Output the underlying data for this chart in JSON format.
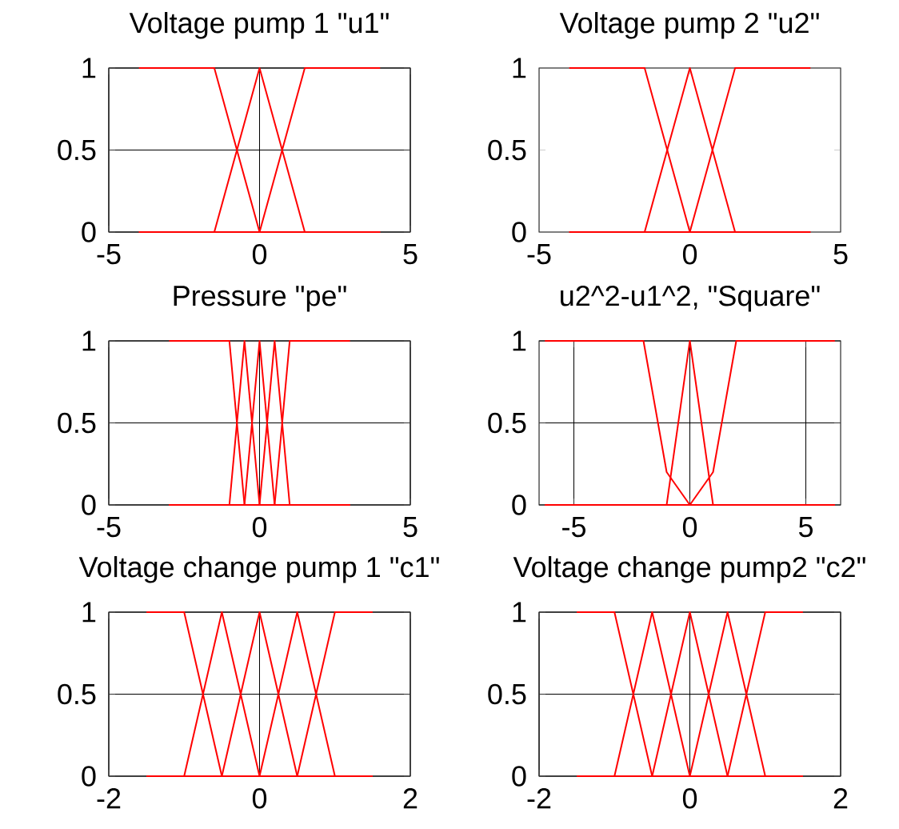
{
  "chart_data": [
    {
      "type": "line",
      "title": "Voltage pump 1 \"u1\"",
      "xlim": [
        -5,
        5
      ],
      "ylim": [
        0,
        1
      ],
      "xticks": [
        -5,
        0,
        5
      ],
      "yticks": [
        0,
        0.5,
        1
      ],
      "grid": true,
      "series": [
        {
          "color": "#ff0000",
          "x": [
            -4,
            -1.5,
            0,
            4
          ],
          "values": [
            1,
            1,
            0,
            0
          ]
        },
        {
          "color": "#ff0000",
          "x": [
            -4,
            -1.5,
            0,
            1.5,
            4
          ],
          "values": [
            0,
            0,
            1,
            0,
            0
          ]
        },
        {
          "color": "#ff0000",
          "x": [
            -4,
            0,
            1.5,
            4
          ],
          "values": [
            0,
            0,
            1,
            1
          ]
        }
      ]
    },
    {
      "type": "line",
      "title": "Voltage pump 2 \"u2\"",
      "xlim": [
        -5,
        5
      ],
      "ylim": [
        0,
        1
      ],
      "xticks": [
        -5,
        0,
        5
      ],
      "yticks": [
        0,
        0.5,
        1
      ],
      "grid": false,
      "series": [
        {
          "color": "#ff0000",
          "x": [
            -4,
            -1.5,
            0,
            4
          ],
          "values": [
            1,
            1,
            0,
            0
          ]
        },
        {
          "color": "#ff0000",
          "x": [
            -4,
            -1.5,
            0,
            1.5,
            4
          ],
          "values": [
            0,
            0,
            1,
            0,
            0
          ]
        },
        {
          "color": "#ff0000",
          "x": [
            -4,
            0,
            1.5,
            4
          ],
          "values": [
            0,
            0,
            1,
            1
          ]
        }
      ]
    },
    {
      "type": "line",
      "title": "Pressure \"pe\"",
      "xlim": [
        -5,
        5
      ],
      "ylim": [
        0,
        1
      ],
      "xticks": [
        -5,
        0,
        5
      ],
      "yticks": [
        0,
        0.5,
        1
      ],
      "grid": true,
      "series": [
        {
          "color": "#ff0000",
          "x": [
            -3,
            -1,
            -0.5,
            3
          ],
          "values": [
            1,
            1,
            0,
            0
          ]
        },
        {
          "color": "#ff0000",
          "x": [
            -3,
            -1,
            -0.5,
            0,
            3
          ],
          "values": [
            0,
            0,
            1,
            0,
            0
          ]
        },
        {
          "color": "#ff0000",
          "x": [
            -3,
            -0.5,
            0,
            0.5,
            3
          ],
          "values": [
            0,
            0,
            1,
            0,
            0
          ]
        },
        {
          "color": "#ff0000",
          "x": [
            -3,
            0,
            0.5,
            1,
            3
          ],
          "values": [
            0,
            0,
            1,
            0,
            0
          ]
        },
        {
          "color": "#ff0000",
          "x": [
            -3,
            0.5,
            1,
            3
          ],
          "values": [
            0,
            0,
            1,
            1
          ]
        }
      ]
    },
    {
      "type": "line",
      "title": "u2^2-u1^2, \"Square\"",
      "xlim": [
        -6.5,
        6.5
      ],
      "ylim": [
        0,
        1
      ],
      "xticks": [
        -5,
        0,
        5
      ],
      "yticks": [
        0,
        0.5,
        1
      ],
      "grid": true,
      "series": [
        {
          "color": "#ff0000",
          "x": [
            -6.25,
            -2,
            -1,
            0,
            6.25
          ],
          "values": [
            1,
            1,
            0.2,
            0,
            0
          ]
        },
        {
          "color": "#ff0000",
          "x": [
            -6.25,
            -1,
            0,
            1,
            6.25
          ],
          "values": [
            0,
            0,
            1,
            0,
            0
          ]
        },
        {
          "color": "#ff0000",
          "x": [
            -6.25,
            0,
            1,
            2,
            6.25
          ],
          "values": [
            0,
            0,
            0.2,
            1,
            1
          ]
        }
      ]
    },
    {
      "type": "line",
      "title": "Voltage change pump 1 \"c1\"",
      "xlim": [
        -2,
        2
      ],
      "ylim": [
        0,
        1
      ],
      "xticks": [
        -2,
        0,
        2
      ],
      "yticks": [
        0,
        0.5,
        1
      ],
      "grid": true,
      "series": [
        {
          "color": "#ff0000",
          "x": [
            -1.5,
            -1,
            -0.5,
            1.5
          ],
          "values": [
            1,
            1,
            0,
            0
          ]
        },
        {
          "color": "#ff0000",
          "x": [
            -1.5,
            -1,
            -0.5,
            0,
            1.5
          ],
          "values": [
            0,
            0,
            1,
            0,
            0
          ]
        },
        {
          "color": "#ff0000",
          "x": [
            -1.5,
            -0.5,
            0,
            0.5,
            1.5
          ],
          "values": [
            0,
            0,
            1,
            0,
            0
          ]
        },
        {
          "color": "#ff0000",
          "x": [
            -1.5,
            0,
            0.5,
            1,
            1.5
          ],
          "values": [
            0,
            0,
            1,
            0,
            0
          ]
        },
        {
          "color": "#ff0000",
          "x": [
            -1.5,
            0.5,
            1,
            1.5
          ],
          "values": [
            0,
            0,
            1,
            1
          ]
        }
      ]
    },
    {
      "type": "line",
      "title": "Voltage change pump2 \"c2\"",
      "xlim": [
        -2,
        2
      ],
      "ylim": [
        0,
        1
      ],
      "xticks": [
        -2,
        0,
        2
      ],
      "yticks": [
        0,
        0.5,
        1
      ],
      "grid": true,
      "series": [
        {
          "color": "#ff0000",
          "x": [
            -1.5,
            -1,
            -0.5,
            1.5
          ],
          "values": [
            1,
            1,
            0,
            0
          ]
        },
        {
          "color": "#ff0000",
          "x": [
            -1.5,
            -1,
            -0.5,
            0,
            1.5
          ],
          "values": [
            0,
            0,
            1,
            0,
            0
          ]
        },
        {
          "color": "#ff0000",
          "x": [
            -1.5,
            -0.5,
            0,
            0.5,
            1.5
          ],
          "values": [
            0,
            0,
            1,
            0,
            0
          ]
        },
        {
          "color": "#ff0000",
          "x": [
            -1.5,
            0,
            0.5,
            1,
            1.5
          ],
          "values": [
            0,
            0,
            1,
            0,
            0
          ]
        },
        {
          "color": "#ff0000",
          "x": [
            -1.5,
            0.5,
            1,
            1.5
          ],
          "values": [
            0,
            0,
            1,
            1
          ]
        }
      ]
    }
  ]
}
